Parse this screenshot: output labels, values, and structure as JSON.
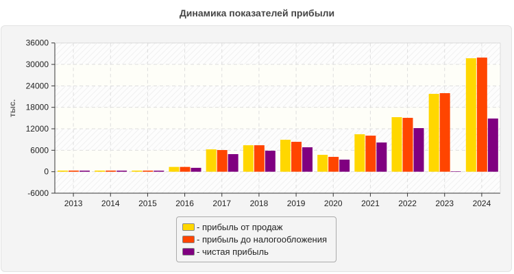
{
  "chart_data": {
    "type": "bar",
    "title": "Динамика показателей прибыли",
    "ylabel": "тыс.",
    "xlabel": "",
    "ylim": [
      -6000,
      36000
    ],
    "yticks": [
      -6000,
      0,
      6000,
      12000,
      18000,
      24000,
      30000,
      36000
    ],
    "grid": true,
    "legend_position": "bottom",
    "categories": [
      "2013",
      "2014",
      "2015",
      "2016",
      "2017",
      "2018",
      "2019",
      "2020",
      "2021",
      "2022",
      "2023",
      "2024"
    ],
    "series": [
      {
        "name": "- прибыль от продаж",
        "color": "#FFD700",
        "values": [
          320,
          320,
          310,
          1340,
          6250,
          7400,
          8940,
          4720,
          10470,
          15250,
          21770,
          31720
        ]
      },
      {
        "name": "- прибыль до налогообложения",
        "color": "#FF4500",
        "values": [
          320,
          320,
          310,
          1340,
          6060,
          7400,
          8360,
          4150,
          10090,
          15060,
          21960,
          31910
        ]
      },
      {
        "name": "- чистая прибыль",
        "color": "#800080",
        "values": [
          300,
          300,
          290,
          1090,
          4920,
          5870,
          6830,
          3380,
          8170,
          12190,
          130,
          14870
        ]
      }
    ]
  }
}
